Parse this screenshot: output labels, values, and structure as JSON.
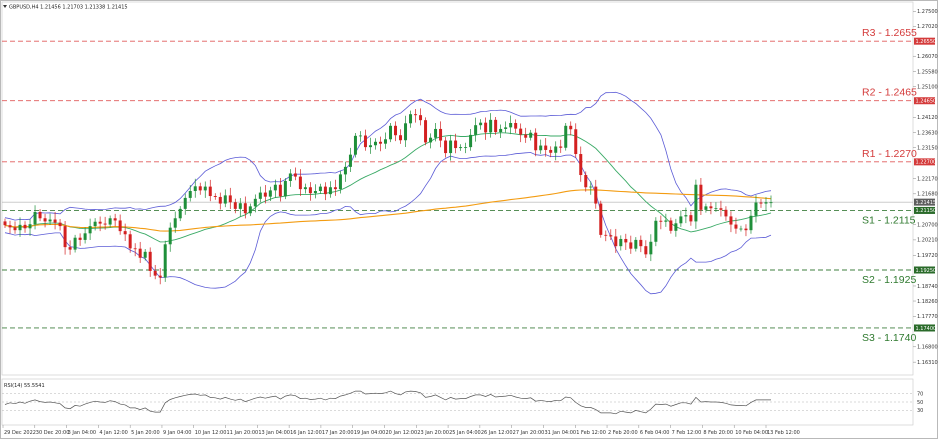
{
  "header": {
    "symbol_info": "GBPUSD,H4  1.21456 1.21703 1.21338 1.21415"
  },
  "indicator": {
    "label": "RSI(14) 55.5541",
    "levels": [
      "70",
      "50",
      "30"
    ]
  },
  "levels": [
    {
      "name": "R3",
      "label": "R3 - 1.2655",
      "value": 1.2655,
      "tag": "1.26550",
      "line_color": "#e05a5a",
      "text_color": "#d43b3b",
      "tag_color": "#d43b3b"
    },
    {
      "name": "R2",
      "label": "R2 - 1.2465",
      "value": 1.2465,
      "tag": "1.24650",
      "line_color": "#e05a5a",
      "text_color": "#d43b3b",
      "tag_color": "#d43b3b"
    },
    {
      "name": "R1",
      "label": "R1 - 1.2270",
      "value": 1.227,
      "tag": "1.22700",
      "line_color": "#e05a5a",
      "text_color": "#d43b3b",
      "tag_color": "#d43b3b"
    },
    {
      "name": "S1",
      "label": "S1 - 1.2115",
      "value": 1.2115,
      "tag": "1.21150",
      "line_color": "#3f7f3f",
      "text_color": "#2f7a2f",
      "tag_color": "#2a6b2a"
    },
    {
      "name": "S2",
      "label": "S2 - 1.1925",
      "value": 1.1925,
      "tag": "1.19250",
      "line_color": "#3f7f3f",
      "text_color": "#2f7a2f",
      "tag_color": "#2a6b2a"
    },
    {
      "name": "S3",
      "label": "S3 - 1.1740",
      "value": 1.174,
      "tag": "1.17400",
      "line_color": "#3f7f3f",
      "text_color": "#2f7a2f",
      "tag_color": "#2a6b2a"
    }
  ],
  "current_price": {
    "value": 1.21415,
    "tag": "1.21415"
  },
  "chart_data": {
    "type": "candlestick",
    "title": "GBPUSD,H4",
    "ylim": [
      1.159,
      1.278
    ],
    "yticks": [
      {
        "value": 1.275,
        "label": "1.27500"
      },
      {
        "value": 1.2702,
        "label": "1.27020"
      },
      {
        "value": 1.2655,
        "label": "1.26550"
      },
      {
        "value": 1.2607,
        "label": "1.26070"
      },
      {
        "value": 1.2558,
        "label": "1.25580"
      },
      {
        "value": 1.251,
        "label": "1.25100"
      },
      {
        "value": 1.2465,
        "label": "1.24650"
      },
      {
        "value": 1.2412,
        "label": "1.24120"
      },
      {
        "value": 1.2363,
        "label": "1.23630"
      },
      {
        "value": 1.2315,
        "label": "1.23150"
      },
      {
        "value": 1.227,
        "label": "1.22700"
      },
      {
        "value": 1.2217,
        "label": "1.22170"
      },
      {
        "value": 1.2168,
        "label": "1.21680"
      },
      {
        "value": 1.2115,
        "label": "1.21150"
      },
      {
        "value": 1.207,
        "label": "1.20700"
      },
      {
        "value": 1.2021,
        "label": "1.20210"
      },
      {
        "value": 1.1972,
        "label": "1.19720"
      },
      {
        "value": 1.1925,
        "label": "1.19250"
      },
      {
        "value": 1.1874,
        "label": "1.18740"
      },
      {
        "value": 1.1826,
        "label": "1.18260"
      },
      {
        "value": 1.1777,
        "label": "1.17770"
      },
      {
        "value": 1.174,
        "label": "1.17400"
      },
      {
        "value": 1.168,
        "label": "1.16800"
      },
      {
        "value": 1.1631,
        "label": "1.16310"
      }
    ],
    "xticks": [
      "29 Dec 2022",
      "30 Dec 20:00",
      "3 Jan 04:00",
      "4 Jan 12:00",
      "5 Jan 20:00",
      "9 Jan 04:00",
      "10 Jan 12:00",
      "11 Jan 20:00",
      "13 Jan 04:00",
      "16 Jan 12:00",
      "17 Jan 20:00",
      "19 Jan 04:00",
      "20 Jan 12:00",
      "23 Jan 20:00",
      "25 Jan 04:00",
      "26 Jan 12:00",
      "27 Jan 20:00",
      "31 Jan 04:00",
      "1 Feb 12:00",
      "2 Feb 20:00",
      "6 Feb 04:00",
      "7 Feb 12:00",
      "8 Feb 20:00",
      "10 Feb 04:00",
      "13 Feb 12:00"
    ],
    "close": [
      1.2068,
      1.2061,
      1.2052,
      1.2069,
      1.2058,
      1.2071,
      1.211,
      1.209,
      1.208,
      1.2086,
      1.2076,
      1.2065,
      1.1998,
      1.199,
      1.2028,
      1.2021,
      1.2042,
      1.2065,
      1.2079,
      1.2073,
      1.207,
      1.209,
      1.2083,
      1.2049,
      1.2039,
      1.1994,
      1.1993,
      1.1964,
      1.1983,
      1.1922,
      1.1907,
      1.1901,
      1.2007,
      1.206,
      1.209,
      1.212,
      1.2155,
      1.2177,
      1.2192,
      1.2179,
      1.2191,
      1.2161,
      1.2158,
      1.2137,
      1.2163,
      1.2141,
      1.212,
      1.2138,
      1.2106,
      1.2128,
      1.2152,
      1.2172,
      1.2159,
      1.2179,
      1.2197,
      1.216,
      1.2209,
      1.2233,
      1.2223,
      1.2183,
      1.2189,
      1.217,
      1.2177,
      1.2191,
      1.2167,
      1.2189,
      1.2183,
      1.223,
      1.2254,
      1.2293,
      1.2353,
      1.2354,
      1.2317,
      1.2323,
      1.2334,
      1.2328,
      1.2342,
      1.2385,
      1.2355,
      1.2339,
      1.2393,
      1.2422,
      1.2419,
      1.2403,
      1.2332,
      1.2347,
      1.2375,
      1.2338,
      1.2298,
      1.2338,
      1.2314,
      1.2317,
      1.2317,
      1.2356,
      1.2387,
      1.2395,
      1.2364,
      1.2404,
      1.2365,
      1.2375,
      1.238,
      1.2394,
      1.2376,
      1.2357,
      1.2347,
      1.2363,
      1.2307,
      1.2322,
      1.2308,
      1.2299,
      1.2319,
      1.2315,
      1.2385,
      1.2374,
      1.2295,
      1.2228,
      1.2189,
      1.2191,
      1.2137,
      1.2037,
      1.2036,
      1.2032,
      1.2001,
      1.2024,
      1.2013,
      1.1993,
      1.2021,
      1.2001,
      1.1975,
      1.2015,
      1.2082,
      1.2079,
      1.2083,
      1.205,
      1.2074,
      1.2096,
      1.21,
      1.208,
      1.2197,
      1.2117,
      1.2128,
      1.2122,
      1.2122,
      1.2117,
      1.2096,
      1.207,
      1.2057,
      1.2057,
      1.2052,
      1.2098,
      1.214,
      1.2137,
      1.2141,
      1.2141
    ],
    "ma_orange_label": "MA 200",
    "bands_label": "Bollinger Bands",
    "rsi": [
      44,
      48,
      46,
      50,
      47,
      52,
      55,
      51,
      49,
      50,
      48,
      46,
      36,
      34,
      42,
      40,
      45,
      49,
      52,
      50,
      49,
      53,
      51,
      45,
      43,
      36,
      36,
      32,
      36,
      28,
      26,
      26,
      48,
      56,
      60,
      63,
      66,
      68,
      69,
      66,
      67,
      61,
      60,
      57,
      61,
      57,
      54,
      57,
      51,
      55,
      59,
      62,
      59,
      62,
      64,
      57,
      64,
      67,
      65,
      58,
      59,
      56,
      57,
      59,
      55,
      59,
      58,
      64,
      67,
      71,
      76,
      76,
      69,
      70,
      71,
      70,
      72,
      76,
      70,
      67,
      74,
      76,
      75,
      72,
      61,
      63,
      67,
      61,
      55,
      61,
      57,
      58,
      58,
      63,
      67,
      67,
      63,
      68,
      62,
      63,
      64,
      66,
      62,
      59,
      58,
      60,
      52,
      54,
      52,
      51,
      54,
      53,
      62,
      60,
      49,
      41,
      37,
      37,
      32,
      24,
      24,
      24,
      22,
      28,
      26,
      24,
      30,
      27,
      24,
      33,
      45,
      44,
      45,
      40,
      44,
      48,
      48,
      45,
      61,
      50,
      51,
      50,
      50,
      49,
      47,
      43,
      42,
      42,
      41,
      49,
      55,
      55,
      55,
      55
    ]
  }
}
